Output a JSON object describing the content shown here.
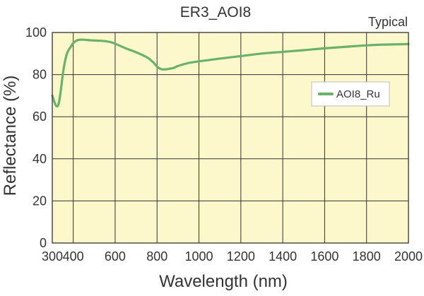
{
  "chart_data": {
    "type": "line",
    "title": "ER3_AOI8",
    "note": "Typical",
    "xlabel": "Wavelength (nm)",
    "ylabel": "Reflectance (%)",
    "xlim": [
      300,
      2000
    ],
    "ylim": [
      0,
      100
    ],
    "xticks": [
      300,
      400,
      600,
      800,
      1000,
      1200,
      1400,
      1600,
      1800,
      2000
    ],
    "yticks": [
      0,
      20,
      40,
      60,
      80,
      100
    ],
    "grid": true,
    "legend_position": "right",
    "colors": {
      "plot_background": "#FDF7CC",
      "grid": "#333333",
      "series": "#6AB26A",
      "text": "#333333"
    },
    "series": [
      {
        "name": "AOI8_Ru",
        "x": [
          300,
          310,
          320,
          330,
          340,
          350,
          360,
          370,
          380,
          390,
          400,
          420,
          440,
          460,
          480,
          500,
          520,
          540,
          560,
          580,
          600,
          650,
          700,
          750,
          780,
          800,
          820,
          840,
          860,
          880,
          900,
          950,
          1000,
          1100,
          1200,
          1300,
          1400,
          1500,
          1600,
          1700,
          1800,
          1900,
          2000
        ],
        "y": [
          70,
          67,
          65,
          66,
          72,
          80,
          86,
          90,
          92,
          93.5,
          95,
          96.3,
          96.6,
          96.5,
          96.3,
          96.2,
          96.1,
          96.0,
          95.8,
          95.4,
          94.7,
          92.5,
          90.6,
          88.3,
          86.0,
          83.8,
          82.6,
          82.5,
          82.8,
          83.2,
          84.1,
          85.5,
          86.3,
          87.6,
          88.8,
          90.0,
          90.8,
          91.6,
          92.5,
          93.2,
          93.9,
          94.3,
          94.5
        ]
      }
    ]
  }
}
